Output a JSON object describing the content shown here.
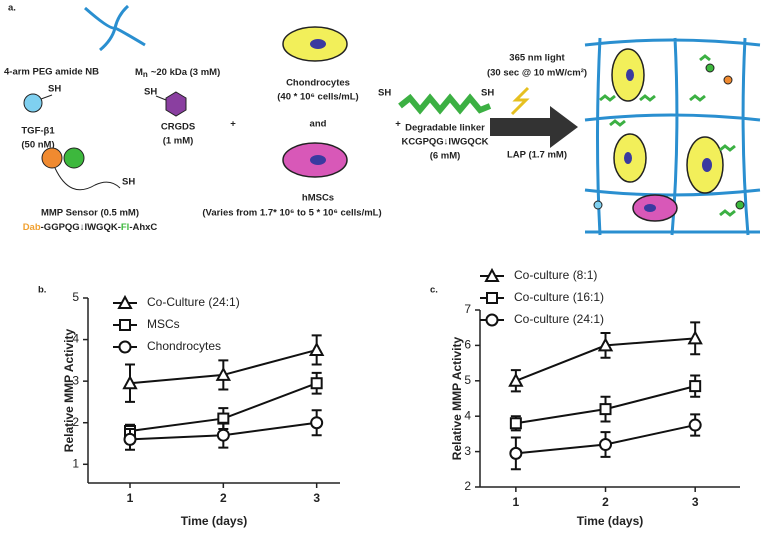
{
  "diagram": {
    "panel": "a.",
    "peg": "4-arm PEG amide NB",
    "mn_m": "M",
    "mn_n": "n",
    "mn": "~20 kDa (3 mM)",
    "sh": "SH",
    "tgf": "TGF-β1",
    "tgf_conc": "(50 nM)",
    "crgds": "CRGDS",
    "crgds_conc": "(1 mM)",
    "chondro": "Chondrocytes",
    "chondro_conc": "(40 * 10⁶ cells/mL)",
    "and": "and",
    "plus": "+",
    "hmsc": "hMSCs",
    "hmsc_conc": "(Varies from 1.7* 10⁶ to 5 * 10⁶ cells/mL)",
    "linker": "Degradable linker",
    "linker_seq": "KCGPQG↓IWGQCK",
    "linker_conc": "(6 mM)",
    "light": "365 nm light",
    "light_cond": "(30 sec @ 10 mW/cm²)",
    "lap": "LAP (1.7 mM)",
    "sensor": "MMP Sensor (0.5 mM)",
    "sensor_seq": [
      {
        "text": "Dab",
        "color": "#f0a030"
      },
      {
        "text": "-GGPQG↓IWGQK-",
        "color": "#222222"
      },
      {
        "text": "Fl",
        "color": "#3db83d"
      },
      {
        "text": "-AhxC",
        "color": "#222222"
      }
    ]
  },
  "chart_data": [
    {
      "type": "line",
      "panel": "b.",
      "ylabel": "Relative MMP Activity",
      "xlabel": "Time (days)",
      "x": [
        1,
        2,
        3
      ],
      "xlim": [
        0.55,
        3.25
      ],
      "xticks": [
        1,
        2,
        3
      ],
      "ylim": [
        0.55,
        5
      ],
      "yticks": [
        1,
        2,
        3,
        4,
        5
      ],
      "legend": "top-left",
      "series": [
        {
          "name": "Co-Culture (24:1)",
          "marker": "triangle",
          "color": "#111111",
          "values": [
            2.95,
            3.15,
            3.75
          ],
          "errors": [
            0.45,
            0.35,
            0.35
          ]
        },
        {
          "name": "MSCs",
          "marker": "square",
          "color": "#111111",
          "values": [
            1.8,
            2.1,
            2.95
          ],
          "errors": [
            0.15,
            0.25,
            0.25
          ]
        },
        {
          "name": "Chondrocytes",
          "marker": "circle",
          "color": "#111111",
          "values": [
            1.6,
            1.7,
            2.0
          ],
          "errors": [
            0.25,
            0.3,
            0.3
          ]
        }
      ]
    },
    {
      "type": "line",
      "panel": "c.",
      "ylabel": "Relative MMP Activity",
      "xlabel": "Time (days)",
      "x": [
        1,
        2,
        3
      ],
      "xlim": [
        0.6,
        3.5
      ],
      "xticks": [
        1,
        2,
        3
      ],
      "ylim": [
        2,
        7
      ],
      "yticks": [
        2,
        3,
        4,
        5,
        6,
        7
      ],
      "legend": "top-left",
      "series": [
        {
          "name": "Co-culture (8:1)",
          "marker": "triangle",
          "color": "#111111",
          "values": [
            5.0,
            6.0,
            6.2
          ],
          "errors": [
            0.3,
            0.35,
            0.45
          ]
        },
        {
          "name": "Co-culture (16:1)",
          "marker": "square",
          "color": "#111111",
          "values": [
            3.8,
            4.2,
            4.85
          ],
          "errors": [
            0.2,
            0.35,
            0.3
          ]
        },
        {
          "name": "Co-culture (24:1)",
          "marker": "circle",
          "color": "#111111",
          "values": [
            2.95,
            3.2,
            3.75
          ],
          "errors": [
            0.45,
            0.35,
            0.3
          ]
        }
      ]
    }
  ]
}
